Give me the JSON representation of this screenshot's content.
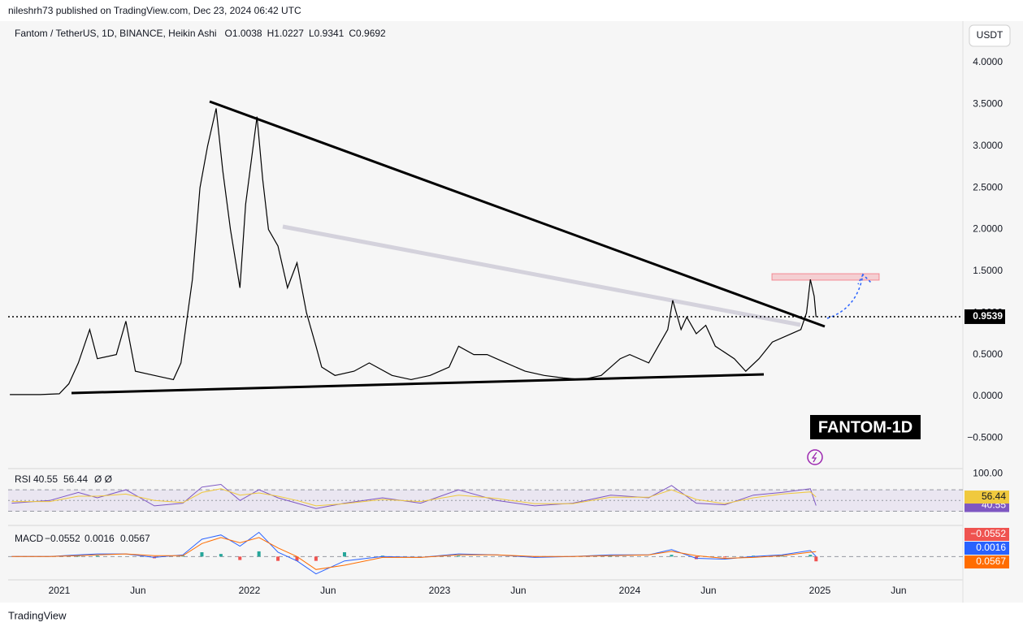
{
  "header": {
    "attribution": "nileshrh73 published on TradingView.com, Dec 23, 2024 06:42 UTC",
    "currency_button": "USDT"
  },
  "chart_data": [
    {
      "type": "line",
      "symbol": "Fantom / TetherUS, 1D, BINANCE, Heikin Ashi",
      "ohlc_labels": [
        "O",
        "H",
        "L",
        "C"
      ],
      "ohlc": [
        1.0038,
        1.0227,
        0.9341,
        0.9692
      ],
      "color": "#000000",
      "last_price": 0.9539,
      "annotation": "FANTOM-1D",
      "xlim": [
        2020.731,
        2025.752
      ],
      "ylim": [
        -0.847,
        4.457
      ],
      "xticks": [
        2021,
        {
          "value": 2021.414,
          "label": "Jun"
        },
        2022,
        {
          "value": 2022.414,
          "label": "Jun"
        },
        2023,
        {
          "value": 2023.414,
          "label": "Jun"
        },
        2024,
        {
          "value": 2024.414,
          "label": "Jun"
        },
        2025,
        {
          "value": 2025.414,
          "label": "Jun"
        }
      ],
      "yticks": [
        {
          "value": 4,
          "label": "4.0000"
        },
        {
          "value": 3.5,
          "label": "3.5000"
        },
        {
          "value": 3,
          "label": "3.0000"
        },
        {
          "value": 2.5,
          "label": "2.5000"
        },
        {
          "value": 2,
          "label": "2.0000"
        },
        {
          "value": 1.5,
          "label": "1.5000"
        },
        {
          "value": 1,
          "label": "1.0000"
        },
        {
          "value": 0.5,
          "label": "0.5000"
        },
        {
          "value": 0,
          "label": "0.0000"
        },
        {
          "value": -0.5,
          "label": "−0.5000"
        }
      ],
      "x": [
        2020.74,
        2020.9,
        2021.0,
        2021.05,
        2021.1,
        2021.16,
        2021.2,
        2021.3,
        2021.35,
        2021.4,
        2021.5,
        2021.6,
        2021.64,
        2021.67,
        2021.7,
        2021.74,
        2021.78,
        2021.825,
        2021.86,
        2021.9,
        2021.95,
        2021.98,
        2022.04,
        2022.07,
        2022.1,
        2022.15,
        2022.2,
        2022.25,
        2022.3,
        2022.35,
        2022.38,
        2022.45,
        2022.55,
        2022.63,
        2022.75,
        2022.85,
        2022.95,
        2023.05,
        2023.1,
        2023.18,
        2023.25,
        2023.35,
        2023.45,
        2023.55,
        2023.65,
        2023.75,
        2023.85,
        2023.95,
        2024.0,
        2024.1,
        2024.15,
        2024.2,
        2024.226,
        2024.27,
        2024.3,
        2024.35,
        2024.4,
        2024.45,
        2024.55,
        2024.61,
        2024.68,
        2024.75,
        2024.85,
        2024.9,
        2024.93,
        2024.95,
        2024.97,
        2024.98
      ],
      "values": [
        0.02,
        0.02,
        0.03,
        0.15,
        0.4,
        0.8,
        0.45,
        0.5,
        0.9,
        0.3,
        0.25,
        0.2,
        0.4,
        0.9,
        1.4,
        2.5,
        3.0,
        3.45,
        2.7,
        2.0,
        1.3,
        2.3,
        3.35,
        2.6,
        2.0,
        1.8,
        1.3,
        1.6,
        1.0,
        0.6,
        0.35,
        0.25,
        0.3,
        0.4,
        0.25,
        0.2,
        0.25,
        0.35,
        0.6,
        0.5,
        0.5,
        0.4,
        0.3,
        0.25,
        0.22,
        0.2,
        0.25,
        0.45,
        0.5,
        0.4,
        0.6,
        0.8,
        1.15,
        0.8,
        0.95,
        0.75,
        0.85,
        0.6,
        0.45,
        0.3,
        0.45,
        0.65,
        0.75,
        0.8,
        1.0,
        1.4,
        1.2,
        0.95
      ]
    },
    {
      "type": "line",
      "title": "RSI",
      "extra_label": "Ø Ø",
      "xlim": [
        2020.731,
        2025.752
      ],
      "ylim": [
        5,
        108
      ],
      "yticks": [
        {
          "value": 100,
          "label": "100.00"
        }
      ],
      "bands": [
        70,
        50,
        30
      ],
      "legend_values": [
        40.55,
        56.44
      ],
      "x": [
        2020.75,
        2020.95,
        2021.1,
        2021.2,
        2021.35,
        2021.5,
        2021.65,
        2021.75,
        2021.85,
        2021.95,
        2022.05,
        2022.15,
        2022.25,
        2022.35,
        2022.5,
        2022.7,
        2022.9,
        2023.1,
        2023.3,
        2023.5,
        2023.7,
        2023.9,
        2024.1,
        2024.22,
        2024.35,
        2024.5,
        2024.65,
        2024.8,
        2024.95,
        2024.98
      ],
      "series": [
        {
          "color": "#7e57c2",
          "values": [
            45,
            50,
            65,
            55,
            70,
            40,
            45,
            75,
            80,
            50,
            70,
            55,
            45,
            35,
            45,
            55,
            45,
            70,
            50,
            40,
            45,
            60,
            55,
            78,
            45,
            42,
            60,
            65,
            72,
            40.55
          ]
        },
        {
          "color": "#f0c93e",
          "values": [
            48,
            48,
            58,
            58,
            62,
            50,
            46,
            65,
            72,
            60,
            64,
            58,
            50,
            40,
            44,
            52,
            48,
            60,
            54,
            44,
            44,
            56,
            56,
            70,
            52,
            44,
            55,
            62,
            66,
            56.44
          ]
        }
      ]
    },
    {
      "type": "line",
      "title": "MACD",
      "xlim": [
        2020.731,
        2025.752
      ],
      "ylim": [
        -0.25,
        0.35
      ],
      "bands": [
        0
      ],
      "legend_values": [
        {
          "value": -0.0552,
          "label": "−0.0552"
        },
        0.0016,
        0.0567
      ],
      "x": [
        2020.75,
        2020.95,
        2021.1,
        2021.2,
        2021.35,
        2021.5,
        2021.65,
        2021.75,
        2021.85,
        2021.95,
        2022.05,
        2022.15,
        2022.25,
        2022.35,
        2022.5,
        2022.7,
        2022.9,
        2023.1,
        2023.3,
        2023.5,
        2023.7,
        2023.9,
        2024.1,
        2024.22,
        2024.35,
        2024.5,
        2024.65,
        2024.8,
        2024.95,
        2024.98
      ],
      "series": [
        {
          "style": "histogram",
          "color": "#26a69a",
          "negative_color": "#ef5350",
          "values": [
            0,
            0,
            0.01,
            0.01,
            0,
            -0.02,
            0.01,
            0.05,
            0.03,
            -0.04,
            0.06,
            -0.05,
            -0.05,
            -0.05,
            0.05,
            0.01,
            0,
            0.01,
            0,
            -0.01,
            0,
            0.01,
            0,
            0.02,
            -0.03,
            -0.01,
            0.01,
            0.01,
            0.02,
            -0.0552
          ]
        },
        {
          "style": "line",
          "color": "#2962ff",
          "values": [
            0,
            0,
            0.02,
            0.03,
            0.03,
            -0.01,
            0.02,
            0.2,
            0.25,
            0.12,
            0.28,
            0.05,
            -0.05,
            -0.2,
            -0.05,
            0,
            -0.01,
            0.03,
            0.02,
            -0.01,
            0,
            0.02,
            0.02,
            0.08,
            -0.02,
            -0.03,
            0,
            0.02,
            0.07,
            0.0016
          ]
        },
        {
          "style": "line",
          "color": "#ff6d00",
          "values": [
            0,
            0,
            0.01,
            0.02,
            0.03,
            0.01,
            0.01,
            0.15,
            0.22,
            0.16,
            0.22,
            0.1,
            0,
            -0.15,
            -0.1,
            -0.01,
            -0.01,
            0.02,
            0.02,
            0,
            0,
            0.01,
            0.02,
            0.06,
            0.01,
            -0.02,
            -0.01,
            0.01,
            0.05,
            0.0567
          ]
        }
      ]
    }
  ],
  "footer": {
    "brand": "TradingView"
  }
}
